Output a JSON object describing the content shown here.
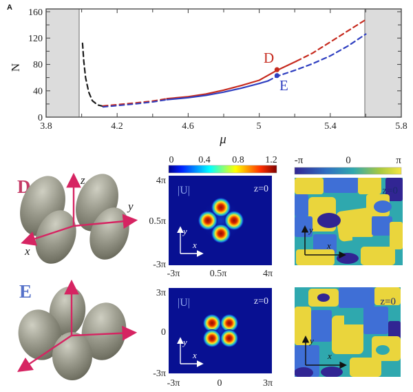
{
  "figure": {
    "panel_label": "A"
  },
  "top_chart": {
    "ylabel": "N",
    "xlabel": "μ",
    "x_ticks": [
      "3.8",
      "4.2",
      "4.6",
      "5",
      "5.4",
      "5.8"
    ],
    "y_ticks": [
      "0",
      "40",
      "80",
      "120",
      "160"
    ],
    "d_label": "D",
    "e_label": "E"
  },
  "chart_data": {
    "type": "line",
    "title": "",
    "xlabel": "μ",
    "ylabel": "N",
    "xlim": [
      3.8,
      5.8
    ],
    "ylim": [
      0,
      160
    ],
    "grid": false,
    "shaded_bands_x": [
      [
        3.8,
        4.0
      ],
      [
        5.6,
        5.8
      ]
    ],
    "series": [
      {
        "name": "unstable-branch-black",
        "color": "#1a1a1a",
        "style": "dashed",
        "width": 2.2,
        "points": [
          [
            4.005,
            112
          ],
          [
            4.012,
            85
          ],
          [
            4.022,
            60
          ],
          [
            4.04,
            38
          ],
          [
            4.06,
            25
          ],
          [
            4.09,
            18.5
          ],
          [
            4.12,
            16.5
          ]
        ]
      },
      {
        "name": "branch-D-red-dashed-low",
        "color": "#c62a1e",
        "style": "dashed",
        "width": 2.0,
        "points": [
          [
            4.12,
            17
          ],
          [
            4.2,
            19
          ],
          [
            4.3,
            21.5
          ],
          [
            4.4,
            24.5
          ],
          [
            4.48,
            28
          ]
        ]
      },
      {
        "name": "branch-E-blue-dashed-low",
        "color": "#2e3ec0",
        "style": "dashed",
        "width": 2.0,
        "points": [
          [
            4.12,
            15.5
          ],
          [
            4.2,
            17.5
          ],
          [
            4.3,
            20
          ],
          [
            4.4,
            23
          ],
          [
            4.48,
            26.5
          ]
        ]
      },
      {
        "name": "branch-D-red-solid",
        "color": "#c62a1e",
        "style": "solid",
        "width": 2.2,
        "points": [
          [
            4.48,
            28
          ],
          [
            4.6,
            31
          ],
          [
            4.7,
            35
          ],
          [
            4.8,
            41
          ],
          [
            4.9,
            48
          ],
          [
            5.0,
            56
          ],
          [
            5.1,
            71
          ],
          [
            5.21,
            85
          ]
        ]
      },
      {
        "name": "branch-E-blue-solid",
        "color": "#2e3ec0",
        "style": "solid",
        "width": 2.2,
        "points": [
          [
            4.48,
            26.5
          ],
          [
            4.6,
            29.5
          ],
          [
            4.7,
            33
          ],
          [
            4.8,
            38
          ],
          [
            4.9,
            44
          ],
          [
            5.0,
            51
          ],
          [
            5.05,
            55
          ]
        ]
      },
      {
        "name": "branch-D-red-dashed-high",
        "color": "#c62a1e",
        "style": "dashed",
        "width": 2.2,
        "points": [
          [
            5.21,
            85
          ],
          [
            5.3,
            97
          ],
          [
            5.4,
            114
          ],
          [
            5.5,
            131
          ],
          [
            5.6,
            148
          ]
        ]
      },
      {
        "name": "branch-E-blue-dashed-high",
        "color": "#2e3ec0",
        "style": "dashed",
        "width": 2.2,
        "points": [
          [
            5.05,
            55
          ],
          [
            5.1,
            62
          ],
          [
            5.2,
            71
          ],
          [
            5.3,
            81
          ],
          [
            5.4,
            93
          ],
          [
            5.5,
            108
          ],
          [
            5.6,
            126
          ]
        ]
      }
    ],
    "markers": [
      {
        "label": "D",
        "mu": 5.1,
        "N": 72,
        "color": "#c62a1e"
      },
      {
        "label": "E",
        "mu": 5.1,
        "N": 63,
        "color": "#2e3ec0"
      }
    ]
  },
  "u_colorbar": {
    "ticks": [
      "0",
      "0.4",
      "0.8",
      "1.2"
    ]
  },
  "phase_colorbar": {
    "ticks": [
      "-π",
      "0",
      "π"
    ]
  },
  "iso_d": {
    "label": "D",
    "x_axis": "x",
    "y_axis": "y",
    "z_axis": "z"
  },
  "iso_e": {
    "label": "E"
  },
  "heatmap_d": {
    "field": "|U|",
    "plane": "z=0",
    "x_axis": "x",
    "y_axis": "y",
    "y_ticks": [
      "4π",
      "0.5π",
      "-3π"
    ],
    "x_ticks": [
      "-3π",
      "0.5π",
      "4π"
    ]
  },
  "heatmap_e": {
    "field": "|U|",
    "plane": "z=0",
    "x_axis": "x",
    "y_axis": "y",
    "y_ticks": [
      "3π",
      "0",
      "-3π"
    ],
    "x_ticks": [
      "-3π",
      "0",
      "3π"
    ]
  },
  "phase_d": {
    "plane": "z=0",
    "x_axis": "x",
    "y_axis": "y"
  },
  "phase_e": {
    "plane": "z=0",
    "x_axis": "x",
    "y_axis": "y"
  },
  "colors": {
    "curve_red": "#c62a1e",
    "curve_blue": "#2e3ec0",
    "curve_black": "#1a1a1a",
    "band_gray": "#dcdcdc",
    "axis_crimson": "#d62462",
    "label_d_crimson": "#c43a66",
    "label_e_blue": "#5571c9",
    "heatmap_bg_navy": "#081092",
    "phase_teal": "#2fa8ae",
    "phase_yellow": "#ead53c",
    "phase_blue": "#3f6fd6",
    "phase_indigo": "#312593"
  }
}
